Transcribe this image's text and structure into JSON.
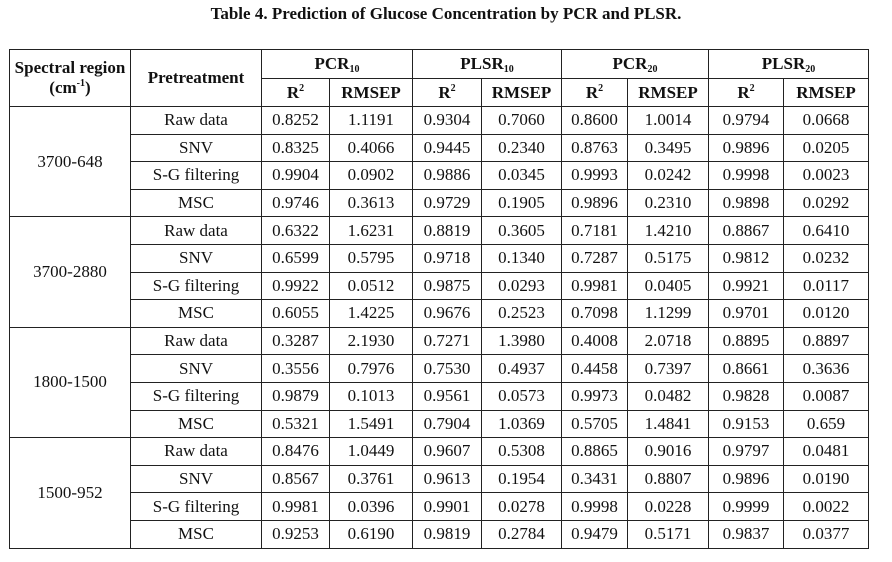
{
  "title": "Table 4. Prediction of Glucose Concentration by PCR and PLSR.",
  "header": {
    "region_label": "Spectral region (cm",
    "region_sup": "-1",
    "region_close": ")",
    "pretreatment": "Pretreatment",
    "models": [
      {
        "name": "PCR",
        "sub": "10"
      },
      {
        "name": "PLSR",
        "sub": "10"
      },
      {
        "name": "PCR",
        "sub": "20"
      },
      {
        "name": "PLSR",
        "sub": "20"
      }
    ],
    "r2_base": "R",
    "r2_sup": "2",
    "rmsep": "RMSEP"
  },
  "groups": [
    {
      "region": "3700-648",
      "rows": [
        {
          "pre": "Raw data",
          "v": [
            "0.8252",
            "1.1191",
            "0.9304",
            "0.7060",
            "0.8600",
            "1.0014",
            "0.9794",
            "0.0668"
          ]
        },
        {
          "pre": "SNV",
          "v": [
            "0.8325",
            "0.4066",
            "0.9445",
            "0.2340",
            "0.8763",
            "0.3495",
            "0.9896",
            "0.0205"
          ]
        },
        {
          "pre": "S-G filtering",
          "v": [
            "0.9904",
            "0.0902",
            "0.9886",
            "0.0345",
            "0.9993",
            "0.0242",
            "0.9998",
            "0.0023"
          ]
        },
        {
          "pre": "MSC",
          "v": [
            "0.9746",
            "0.3613",
            "0.9729",
            "0.1905",
            "0.9896",
            "0.2310",
            "0.9898",
            "0.0292"
          ]
        }
      ]
    },
    {
      "region": "3700-2880",
      "rows": [
        {
          "pre": "Raw data",
          "v": [
            "0.6322",
            "1.6231",
            "0.8819",
            "0.3605",
            "0.7181",
            "1.4210",
            "0.8867",
            "0.6410"
          ]
        },
        {
          "pre": "SNV",
          "v": [
            "0.6599",
            "0.5795",
            "0.9718",
            "0.1340",
            "0.7287",
            "0.5175",
            "0.9812",
            "0.0232"
          ]
        },
        {
          "pre": "S-G filtering",
          "v": [
            "0.9922",
            "0.0512",
            "0.9875",
            "0.0293",
            "0.9981",
            "0.0405",
            "0.9921",
            "0.0117"
          ]
        },
        {
          "pre": "MSC",
          "v": [
            "0.6055",
            "1.4225",
            "0.9676",
            "0.2523",
            "0.7098",
            "1.1299",
            "0.9701",
            "0.0120"
          ]
        }
      ]
    },
    {
      "region": "1800-1500",
      "rows": [
        {
          "pre": "Raw data",
          "v": [
            "0.3287",
            "2.1930",
            "0.7271",
            "1.3980",
            "0.4008",
            "2.0718",
            "0.8895",
            "0.8897"
          ]
        },
        {
          "pre": "SNV",
          "v": [
            "0.3556",
            "0.7976",
            "0.7530",
            "0.4937",
            "0.4458",
            "0.7397",
            "0.8661",
            "0.3636"
          ]
        },
        {
          "pre": "S-G filtering",
          "v": [
            "0.9879",
            "0.1013",
            "0.9561",
            "0.0573",
            "0.9973",
            "0.0482",
            "0.9828",
            "0.0087"
          ]
        },
        {
          "pre": "MSC",
          "v": [
            "0.5321",
            "1.5491",
            "0.7904",
            "1.0369",
            "0.5705",
            "1.4841",
            "0.9153",
            "0.659"
          ]
        }
      ]
    },
    {
      "region": "1500-952",
      "rows": [
        {
          "pre": "Raw data",
          "v": [
            "0.8476",
            "1.0449",
            "0.9607",
            "0.5308",
            "0.8865",
            "0.9016",
            "0.9797",
            "0.0481"
          ]
        },
        {
          "pre": "SNV",
          "v": [
            "0.8567",
            "0.3761",
            "0.9613",
            "0.1954",
            "0.3431",
            "0.8807",
            "0.9896",
            "0.0190"
          ]
        },
        {
          "pre": "S-G filtering",
          "v": [
            "0.9981",
            "0.0396",
            "0.9901",
            "0.0278",
            "0.9998",
            "0.0228",
            "0.9999",
            "0.0022"
          ]
        },
        {
          "pre": "MSC",
          "v": [
            "0.9253",
            "0.6190",
            "0.9819",
            "0.2784",
            "0.9479",
            "0.5171",
            "0.9837",
            "0.0377"
          ]
        }
      ]
    }
  ]
}
